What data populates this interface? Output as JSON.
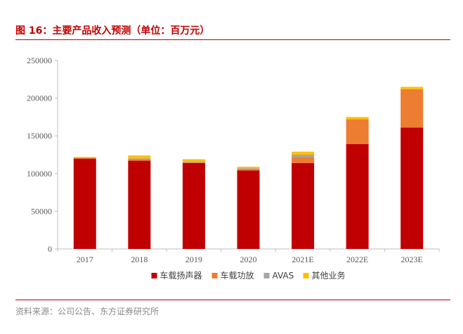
{
  "header": {
    "title": "图 16：主要产品收入预测（单位：百万元）"
  },
  "footer": {
    "source": "资料来源：公司公告、东方证券研究所"
  },
  "chart_data": {
    "type": "bar",
    "stacked": true,
    "title": "",
    "xlabel": "",
    "ylabel": "",
    "categories": [
      "2017",
      "2018",
      "2019",
      "2020",
      "2021E",
      "2022E",
      "2023E"
    ],
    "ylim": [
      0,
      250000
    ],
    "yticks": [
      0,
      50000,
      100000,
      150000,
      200000,
      250000
    ],
    "grid": false,
    "legend_position": "bottom",
    "series": [
      {
        "name": "车载扬声器",
        "color": "#c00000",
        "values": [
          120000,
          117000,
          114000,
          104000,
          114000,
          139000,
          161000
        ]
      },
      {
        "name": "车载功放",
        "color": "#ed7d31",
        "values": [
          0,
          2000,
          1000,
          2000,
          8000,
          33000,
          51000
        ]
      },
      {
        "name": "AVAS",
        "color": "#a5a5a5",
        "values": [
          0,
          1000,
          1000,
          1000,
          3000,
          0,
          0
        ]
      },
      {
        "name": "其他业务",
        "color": "#ffc000",
        "values": [
          2000,
          4000,
          3000,
          2000,
          4000,
          3000,
          3000
        ]
      }
    ]
  }
}
